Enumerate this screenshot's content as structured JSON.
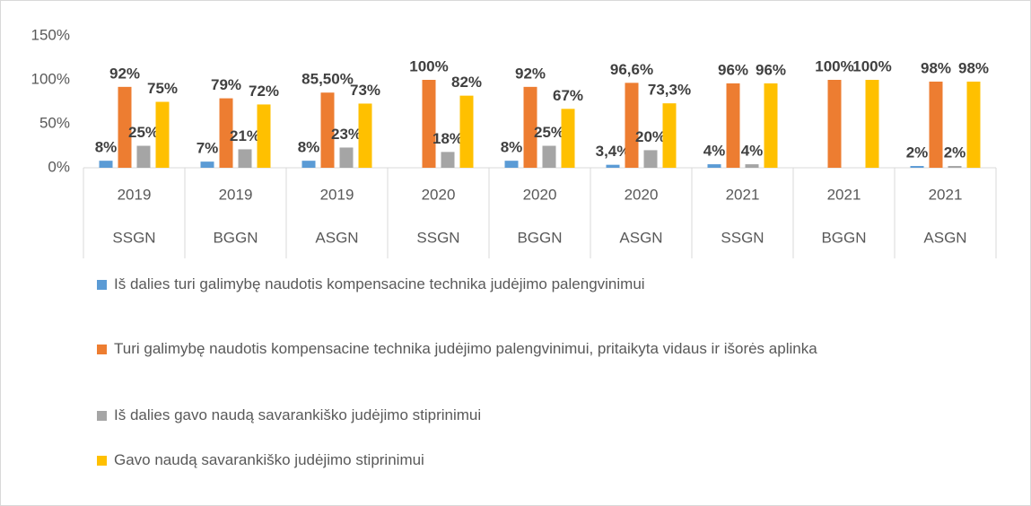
{
  "chart_data": {
    "type": "bar",
    "categories": [
      [
        "2019",
        "SSGN"
      ],
      [
        "2019",
        "BGGN"
      ],
      [
        "2019",
        "ASGN"
      ],
      [
        "2020",
        "SSGN"
      ],
      [
        "2020",
        "BGGN"
      ],
      [
        "2020",
        "ASGN"
      ],
      [
        "2021",
        "SSGN"
      ],
      [
        "2021",
        "BGGN"
      ],
      [
        "2021",
        "ASGN"
      ]
    ],
    "series": [
      {
        "name": "Iš dalies turi galimybę naudotis kompensacine technika judėjimo palengvinimui",
        "color": "#5b9bd5",
        "values": [
          8,
          7,
          8,
          null,
          8,
          3.4,
          4,
          null,
          2
        ],
        "value_labels": [
          "8%",
          "7%",
          "8%",
          null,
          "8%",
          "3,4%",
          "4%",
          null,
          "2%"
        ]
      },
      {
        "name": "Turi galimybę naudotis kompensacine technika judėjimo palengvinimui, pritaikyta vidaus ir išorės aplinka",
        "color": "#ed7d31",
        "values": [
          92,
          79,
          85.5,
          100,
          92,
          96.6,
          96,
          100,
          98
        ],
        "value_labels": [
          "92%",
          "79%",
          "85,50%",
          "100%",
          "92%",
          "96,6%",
          "96%",
          "100%",
          "98%"
        ]
      },
      {
        "name": "Iš dalies gavo naudą savarankiško judėjimo stiprinimui",
        "color": "#a5a5a5",
        "values": [
          25,
          21,
          23,
          18,
          25,
          20,
          4,
          null,
          2
        ],
        "value_labels": [
          "25%",
          "21%",
          "23%",
          "18%",
          "25%",
          "20%",
          "4%",
          null,
          "2%"
        ]
      },
      {
        "name": "Gavo naudą savarankiško judėjimo stiprinimui",
        "color": "#ffc000",
        "values": [
          75,
          72,
          73,
          82,
          67,
          73.3,
          96,
          100,
          98
        ],
        "value_labels": [
          "75%",
          "72%",
          "73%",
          "82%",
          "67%",
          "73,3%",
          "96%",
          "100%",
          "98%"
        ]
      }
    ],
    "ylim": [
      0,
      150
    ],
    "yticks": [
      {
        "value": 0,
        "label": "0%"
      },
      {
        "value": 50,
        "label": "50%"
      },
      {
        "value": 100,
        "label": "100%"
      },
      {
        "value": 150,
        "label": "150%"
      }
    ],
    "grid": false
  }
}
